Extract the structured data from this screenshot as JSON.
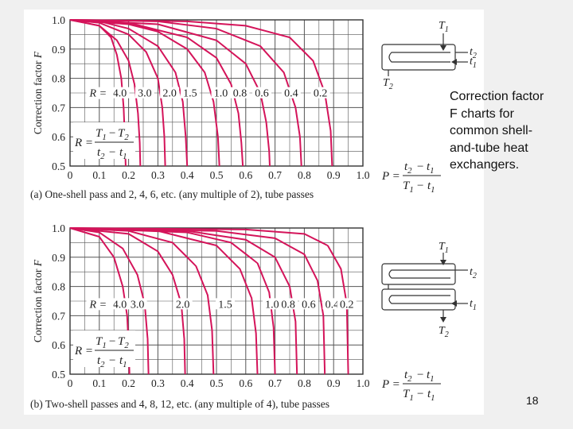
{
  "side_text": {
    "line1": "Correction factor",
    "line2": "F charts for",
    "line3": "common shell-",
    "line4": "and-tube heat",
    "line5": "exchangers."
  },
  "slide_number": "18",
  "colors": {
    "curve": "#d4145a",
    "grid": "#555555",
    "background": "#f0f0f0",
    "panel": "#ffffff"
  },
  "chart_data": [
    {
      "type": "line",
      "panel_label": "(a)",
      "caption": "One-shell pass and 2, 4, 6, etc. (any multiple of 2), tube passes",
      "ylabel": "Correction factor F",
      "x_ticks": [
        "0",
        "0.1",
        "0.2",
        "0.3",
        "0.4",
        "0.5",
        "0.6",
        "0.7",
        "0.8",
        "0.9",
        "1.0"
      ],
      "y_ticks": [
        "0.5",
        "0.6",
        "0.7",
        "0.8",
        "0.9",
        "1.0"
      ],
      "xlim": [
        0,
        1.0
      ],
      "ylim": [
        0.5,
        1.0
      ],
      "grid": true,
      "R_formula": {
        "lhs": "R =",
        "num": "T1 − T2",
        "den": "t2 − t1"
      },
      "P_formula": {
        "lhs": "P =",
        "num": "t2 − t1",
        "den": "T1 − t1"
      },
      "R_prefix": "R =",
      "series": [
        {
          "name": "4.0",
          "values": [
            [
              0,
              1.0
            ],
            [
              0.1,
              0.98
            ],
            [
              0.14,
              0.94
            ],
            [
              0.16,
              0.88
            ],
            [
              0.175,
              0.8
            ],
            [
              0.183,
              0.7
            ],
            [
              0.187,
              0.6
            ],
            [
              0.19,
              0.5
            ]
          ]
        },
        {
          "name": "3.0",
          "values": [
            [
              0,
              1.0
            ],
            [
              0.1,
              0.98
            ],
            [
              0.16,
              0.93
            ],
            [
              0.2,
              0.86
            ],
            [
              0.22,
              0.78
            ],
            [
              0.232,
              0.68
            ],
            [
              0.238,
              0.58
            ],
            [
              0.24,
              0.5
            ]
          ]
        },
        {
          "name": "2.0",
          "values": [
            [
              0,
              1.0
            ],
            [
              0.1,
              0.99
            ],
            [
              0.2,
              0.95
            ],
            [
              0.26,
              0.89
            ],
            [
              0.3,
              0.8
            ],
            [
              0.315,
              0.7
            ],
            [
              0.322,
              0.6
            ],
            [
              0.325,
              0.5
            ]
          ]
        },
        {
          "name": "1.5",
          "values": [
            [
              0,
              1.0
            ],
            [
              0.1,
              0.995
            ],
            [
              0.2,
              0.97
            ],
            [
              0.3,
              0.91
            ],
            [
              0.36,
              0.82
            ],
            [
              0.385,
              0.72
            ],
            [
              0.395,
              0.6
            ],
            [
              0.4,
              0.5
            ]
          ]
        },
        {
          "name": "1.0",
          "values": [
            [
              0,
              1.0
            ],
            [
              0.2,
              0.985
            ],
            [
              0.3,
              0.96
            ],
            [
              0.4,
              0.9
            ],
            [
              0.46,
              0.82
            ],
            [
              0.49,
              0.72
            ],
            [
              0.505,
              0.6
            ],
            [
              0.51,
              0.5
            ]
          ]
        },
        {
          "name": "0.8",
          "values": [
            [
              0,
              1.0
            ],
            [
              0.2,
              0.99
            ],
            [
              0.4,
              0.94
            ],
            [
              0.5,
              0.87
            ],
            [
              0.55,
              0.78
            ],
            [
              0.575,
              0.68
            ],
            [
              0.585,
              0.58
            ],
            [
              0.59,
              0.5
            ]
          ]
        },
        {
          "name": "0.6",
          "values": [
            [
              0,
              1.0
            ],
            [
              0.3,
              0.985
            ],
            [
              0.5,
              0.93
            ],
            [
              0.6,
              0.85
            ],
            [
              0.65,
              0.75
            ],
            [
              0.67,
              0.65
            ],
            [
              0.68,
              0.55
            ],
            [
              0.682,
              0.5
            ]
          ]
        },
        {
          "name": "0.4",
          "values": [
            [
              0,
              1.0
            ],
            [
              0.3,
              0.995
            ],
            [
              0.5,
              0.97
            ],
            [
              0.65,
              0.91
            ],
            [
              0.73,
              0.82
            ],
            [
              0.77,
              0.7
            ],
            [
              0.785,
              0.6
            ],
            [
              0.79,
              0.5
            ]
          ]
        },
        {
          "name": "0.2",
          "values": [
            [
              0,
              1.0
            ],
            [
              0.4,
              0.995
            ],
            [
              0.6,
              0.98
            ],
            [
              0.75,
              0.94
            ],
            [
              0.83,
              0.86
            ],
            [
              0.87,
              0.75
            ],
            [
              0.89,
              0.62
            ],
            [
              0.895,
              0.5
            ]
          ]
        }
      ],
      "curve_label_positions": [
        {
          "text": "4.0",
          "x": 0.17,
          "y": 0.74
        },
        {
          "text": "3.0",
          "x": 0.255,
          "y": 0.74
        },
        {
          "text": "2.0",
          "x": 0.34,
          "y": 0.74
        },
        {
          "text": "1.5",
          "x": 0.41,
          "y": 0.74
        },
        {
          "text": "1.0",
          "x": 0.515,
          "y": 0.74
        },
        {
          "text": "0.8",
          "x": 0.58,
          "y": 0.74
        },
        {
          "text": "0.6",
          "x": 0.655,
          "y": 0.74
        },
        {
          "text": "0.4",
          "x": 0.755,
          "y": 0.74
        },
        {
          "text": "0.2",
          "x": 0.855,
          "y": 0.74
        }
      ],
      "diagram_labels": {
        "T1": "T1",
        "T2": "T2",
        "t1": "t1",
        "t2": "t2"
      }
    },
    {
      "type": "line",
      "panel_label": "(b)",
      "caption": "Two-shell passes and 4, 8, 12, etc. (any multiple of 4), tube passes",
      "ylabel": "Correction factor F",
      "x_ticks": [
        "0",
        "0.1",
        "0.2",
        "0.3",
        "0.4",
        "0.5",
        "0.6",
        "0.7",
        "0.8",
        "0.9",
        "1.0"
      ],
      "y_ticks": [
        "0.5",
        "0.6",
        "0.7",
        "0.8",
        "0.9",
        "1.0"
      ],
      "xlim": [
        0,
        1.0
      ],
      "ylim": [
        0.5,
        1.0
      ],
      "grid": true,
      "R_formula": {
        "lhs": "R =",
        "num": "T1 − T2",
        "den": "t2 − t1"
      },
      "P_formula": {
        "lhs": "P =",
        "num": "t2 − t1",
        "den": "T1 − t1"
      },
      "R_prefix": "R =",
      "series": [
        {
          "name": "4.0",
          "values": [
            [
              0,
              1.0
            ],
            [
              0.1,
              0.97
            ],
            [
              0.15,
              0.9
            ],
            [
              0.18,
              0.8
            ],
            [
              0.195,
              0.7
            ],
            [
              0.2,
              0.6
            ],
            [
              0.203,
              0.5
            ]
          ]
        },
        {
          "name": "3.0",
          "values": [
            [
              0,
              1.0
            ],
            [
              0.1,
              0.985
            ],
            [
              0.18,
              0.93
            ],
            [
              0.23,
              0.84
            ],
            [
              0.255,
              0.74
            ],
            [
              0.265,
              0.62
            ],
            [
              0.268,
              0.5
            ]
          ]
        },
        {
          "name": "2.0",
          "values": [
            [
              0,
              1.0
            ],
            [
              0.2,
              0.98
            ],
            [
              0.3,
              0.92
            ],
            [
              0.35,
              0.84
            ],
            [
              0.38,
              0.74
            ],
            [
              0.39,
              0.62
            ],
            [
              0.393,
              0.5
            ]
          ]
        },
        {
          "name": "1.5",
          "values": [
            [
              0,
              1.0
            ],
            [
              0.2,
              0.99
            ],
            [
              0.35,
              0.95
            ],
            [
              0.43,
              0.87
            ],
            [
              0.47,
              0.77
            ],
            [
              0.485,
              0.65
            ],
            [
              0.49,
              0.5
            ]
          ]
        },
        {
          "name": "1.0",
          "values": [
            [
              0,
              1.0
            ],
            [
              0.3,
              0.99
            ],
            [
              0.5,
              0.94
            ],
            [
              0.58,
              0.86
            ],
            [
              0.62,
              0.76
            ],
            [
              0.635,
              0.64
            ],
            [
              0.64,
              0.5
            ]
          ]
        },
        {
          "name": "0.8",
          "values": [
            [
              0,
              1.0
            ],
            [
              0.4,
              0.985
            ],
            [
              0.55,
              0.95
            ],
            [
              0.64,
              0.88
            ],
            [
              0.68,
              0.78
            ],
            [
              0.695,
              0.66
            ],
            [
              0.7,
              0.5
            ]
          ]
        },
        {
          "name": "0.6",
          "values": [
            [
              0,
              1.0
            ],
            [
              0.4,
              0.99
            ],
            [
              0.6,
              0.96
            ],
            [
              0.7,
              0.9
            ],
            [
              0.75,
              0.8
            ],
            [
              0.77,
              0.68
            ],
            [
              0.775,
              0.5
            ]
          ]
        },
        {
          "name": "0.4",
          "values": [
            [
              0,
              1.0
            ],
            [
              0.5,
              0.99
            ],
            [
              0.7,
              0.965
            ],
            [
              0.8,
              0.91
            ],
            [
              0.845,
              0.82
            ],
            [
              0.865,
              0.7
            ],
            [
              0.87,
              0.5
            ]
          ]
        },
        {
          "name": "0.2",
          "values": [
            [
              0,
              1.0
            ],
            [
              0.6,
              0.995
            ],
            [
              0.8,
              0.98
            ],
            [
              0.88,
              0.94
            ],
            [
              0.925,
              0.86
            ],
            [
              0.945,
              0.74
            ],
            [
              0.95,
              0.5
            ]
          ]
        }
      ],
      "curve_label_positions": [
        {
          "text": "4.0",
          "x": 0.17,
          "y": 0.73
        },
        {
          "text": "3.0",
          "x": 0.23,
          "y": 0.73
        },
        {
          "text": "2.0",
          "x": 0.385,
          "y": 0.73
        },
        {
          "text": "1.5",
          "x": 0.53,
          "y": 0.73
        },
        {
          "text": "1.0",
          "x": 0.69,
          "y": 0.73
        },
        {
          "text": "0.8",
          "x": 0.745,
          "y": 0.73
        },
        {
          "text": "0.6",
          "x": 0.815,
          "y": 0.73
        },
        {
          "text": "0.4",
          "x": 0.895,
          "y": 0.73
        },
        {
          "text": "0.2",
          "x": 0.945,
          "y": 0.73
        }
      ],
      "diagram_labels": {
        "T1": "T1",
        "T2": "T2",
        "t1": "t1",
        "t2": "t2"
      }
    }
  ]
}
